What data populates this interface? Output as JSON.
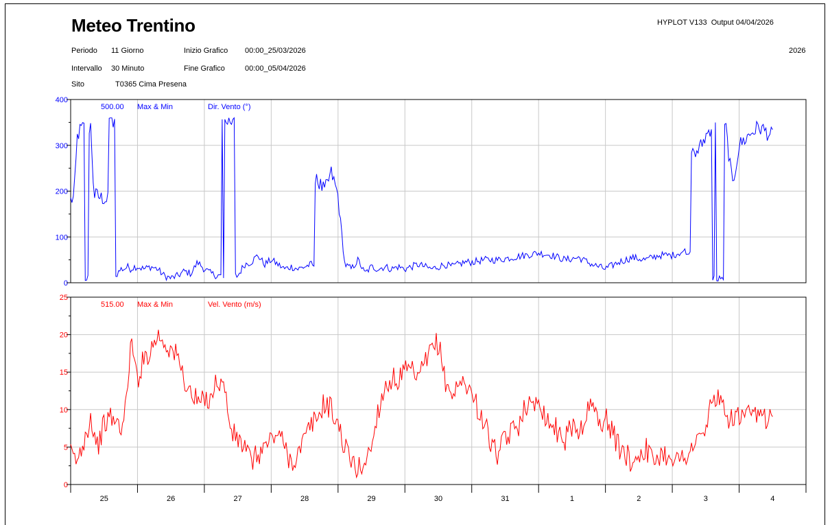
{
  "header": {
    "title": "Meteo Trentino",
    "software": "HYPLOT V133",
    "output": "Output 04/04/2026",
    "year": "2026",
    "periodo_label": "Periodo",
    "periodo_value": "11 Giorno",
    "intervallo_label": "Intervallo",
    "intervallo_value": "30 Minuto",
    "sito_label": "Sito",
    "sito_value": "T0365  Cima Presena",
    "inizio_label": "Inizio Grafico",
    "inizio_value": "00:00_25/03/2026",
    "fine_label": "Fine Grafico",
    "fine_value": "00:00_05/04/2026"
  },
  "colors": {
    "dir": "#0000ff",
    "vel": "#ff0000",
    "grid": "#c8c8c8"
  },
  "chart_data": [
    {
      "type": "line",
      "series_label": "Dir. Vento (°)",
      "code": "500.00",
      "stat": "Max & Min",
      "ylim": [
        0,
        400
      ],
      "yticks": [
        0,
        100,
        200,
        300,
        400
      ],
      "xlim": [
        0,
        11
      ],
      "x_tick_labels": [
        "25",
        "26",
        "27",
        "28",
        "29",
        "30",
        "31",
        "1",
        "2",
        "3",
        "4"
      ],
      "series": [
        {
          "x": [
            0,
            0.05,
            0.1,
            0.15,
            0.2,
            0.25,
            0.3,
            0.35,
            0.4,
            0.45,
            0.5,
            0.55,
            0.6,
            0.65,
            0.7,
            0.75,
            0.8,
            0.85,
            0.9,
            0.95,
            1.0,
            1.1,
            1.2,
            1.3,
            1.4,
            1.5,
            1.6,
            1.7,
            1.8,
            1.9,
            2.0,
            2.1,
            2.2,
            2.3,
            2.4,
            2.5,
            2.6,
            2.7,
            2.8,
            2.9,
            3.0,
            3.1,
            3.2,
            3.3,
            3.4,
            3.5,
            3.6,
            3.7,
            3.8,
            3.9,
            4.0,
            4.1,
            4.2,
            4.3,
            4.4,
            4.5,
            4.6,
            4.7,
            4.8,
            4.9,
            5.0,
            5.1,
            5.2,
            5.3,
            5.4,
            5.5,
            5.6,
            5.7,
            5.8,
            5.9,
            6.0,
            6.2,
            6.4,
            6.6,
            6.8,
            7.0,
            7.2,
            7.4,
            7.6,
            7.8,
            8.0,
            8.2,
            8.4,
            8.6,
            8.8,
            9.0,
            9.2,
            9.4,
            9.5,
            9.6,
            9.7,
            9.8,
            9.9,
            10.0,
            10.1,
            10.2,
            10.3,
            10.4,
            10.5
          ],
          "y": [
            180,
            185,
            320,
            335,
            340,
            10,
            340,
            190,
            190,
            185,
            185,
            180,
            350,
            345,
            20,
            30,
            30,
            35,
            30,
            35,
            35,
            30,
            35,
            30,
            15,
            10,
            15,
            25,
            20,
            45,
            30,
            20,
            15,
            350,
            355,
            15,
            40,
            45,
            60,
            40,
            50,
            40,
            30,
            35,
            30,
            35,
            40,
            220,
            200,
            240,
            190,
            40,
            30,
            50,
            20,
            35,
            30,
            35,
            30,
            35,
            30,
            35,
            40,
            35,
            30,
            35,
            40,
            35,
            40,
            45,
            45,
            50,
            50,
            55,
            60,
            65,
            60,
            50,
            55,
            40,
            30,
            45,
            55,
            50,
            60,
            60,
            70,
            290,
            320,
            345,
            10,
            340,
            210,
            300,
            315,
            330,
            340,
            330,
            320
          ]
        }
      ]
    },
    {
      "type": "line",
      "series_label": "Vel. Vento (m/s)",
      "code": "515.00",
      "stat": "Max & Min",
      "ylim": [
        0,
        25
      ],
      "yticks": [
        0,
        5,
        10,
        15,
        20,
        25
      ],
      "xlim": [
        0,
        11
      ],
      "x_tick_labels": [
        "25",
        "26",
        "27",
        "28",
        "29",
        "30",
        "31",
        "1",
        "2",
        "3",
        "4"
      ],
      "series": [
        {
          "x": [
            0,
            0.1,
            0.2,
            0.3,
            0.4,
            0.5,
            0.6,
            0.7,
            0.8,
            0.9,
            1.0,
            1.1,
            1.2,
            1.3,
            1.4,
            1.5,
            1.6,
            1.7,
            1.8,
            1.9,
            2.0,
            2.1,
            2.2,
            2.3,
            2.4,
            2.5,
            2.6,
            2.7,
            2.8,
            2.9,
            3.0,
            3.1,
            3.2,
            3.3,
            3.4,
            3.5,
            3.6,
            3.7,
            3.8,
            3.9,
            4.0,
            4.1,
            4.2,
            4.3,
            4.4,
            4.5,
            4.6,
            4.7,
            4.8,
            4.9,
            5.0,
            5.1,
            5.2,
            5.3,
            5.4,
            5.5,
            5.6,
            5.7,
            5.8,
            5.9,
            6.0,
            6.1,
            6.2,
            6.3,
            6.4,
            6.5,
            6.6,
            6.7,
            6.8,
            6.9,
            7.0,
            7.1,
            7.2,
            7.3,
            7.4,
            7.5,
            7.6,
            7.7,
            7.8,
            7.9,
            8.0,
            8.1,
            8.2,
            8.3,
            8.4,
            8.5,
            8.6,
            8.7,
            8.8,
            8.9,
            9.0,
            9.1,
            9.2,
            9.3,
            9.4,
            9.5,
            9.6,
            9.7,
            9.8,
            9.9,
            10.0,
            10.1,
            10.2,
            10.3,
            10.4,
            10.5
          ],
          "y": [
            4,
            3,
            6,
            9,
            5,
            8,
            9,
            8,
            8,
            19,
            14,
            17,
            18,
            20,
            19,
            18,
            17,
            14,
            12,
            11,
            11,
            12,
            14,
            13,
            7,
            6,
            5,
            3,
            4,
            5,
            6,
            7,
            5,
            3,
            4,
            6,
            8,
            9,
            11,
            10,
            8,
            5,
            3,
            2,
            3,
            5,
            10,
            13,
            14,
            14,
            15,
            15,
            14,
            16,
            18,
            19,
            14,
            12,
            13,
            14,
            12,
            10,
            8,
            5,
            4,
            6,
            7,
            8,
            11,
            10,
            12,
            9,
            8,
            7,
            6,
            8,
            7,
            9,
            11,
            8,
            9,
            7,
            5,
            4,
            3,
            4,
            5,
            3,
            4,
            4,
            4,
            3,
            4,
            5,
            6,
            7,
            12,
            11,
            9,
            9,
            9,
            9,
            9,
            9,
            9,
            9
          ]
        }
      ]
    }
  ]
}
